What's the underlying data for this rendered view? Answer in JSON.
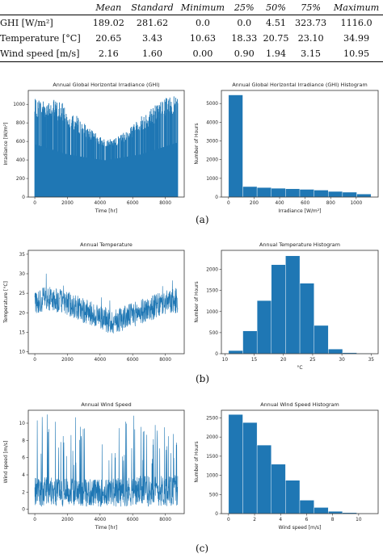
{
  "table": {
    "headers": [
      "",
      "Mean",
      "Standard",
      "Minimum",
      "25%",
      "50%",
      "75%",
      "Maximum"
    ],
    "rows": [
      {
        "label": "GHI [W/m²]",
        "values": [
          "189.02",
          "281.62",
          "0.0",
          "0.0",
          "4.51",
          "323.73",
          "1116.0"
        ]
      },
      {
        "label": "Temperature  [°C]",
        "values": [
          "20.65",
          "3.43",
          "10.63",
          "18.33",
          "20.75",
          "23.10",
          "34.99"
        ]
      },
      {
        "label": "Wind speed [m/s]",
        "values": [
          "2.16",
          "1.60",
          "0.00",
          "0.90",
          "1.94",
          "3.15",
          "10.95"
        ]
      }
    ]
  },
  "captions": [
    "(a)",
    "(b)",
    "(c)"
  ],
  "colors": {
    "series": "#1f77b4"
  },
  "chart_data": [
    {
      "type": "area",
      "title": "Annual Global Horizontal Irradiance (GHI)",
      "xlabel": "Time [hr]",
      "ylabel": "Irradiance [W/m²]",
      "xlim": [
        -400,
        9160
      ],
      "ylim": [
        0,
        1150
      ],
      "xticks": [
        "0",
        "2000",
        "4000",
        "6000",
        "8000"
      ],
      "yticks": [
        "0",
        "200",
        "400",
        "600",
        "800",
        "1000"
      ],
      "envelope": {
        "x": [
          0,
          500,
          1000,
          1500,
          2000,
          2500,
          3000,
          3500,
          4000,
          4500,
          5000,
          5500,
          6000,
          6500,
          7000,
          7500,
          8000,
          8500,
          8760
        ],
        "y": [
          1060,
          1065,
          1060,
          1040,
          980,
          890,
          800,
          720,
          650,
          620,
          640,
          700,
          780,
          870,
          950,
          1020,
          1080,
          1100,
          1090
        ]
      },
      "floor": {
        "x": [
          0,
          2000,
          4300,
          6500,
          8760
        ],
        "y": [
          620,
          500,
          430,
          500,
          640
        ]
      },
      "grid": false
    },
    {
      "type": "bar",
      "title": "Annual Global Horizontal Irradiance (GHI) Histogram",
      "xlabel": "Irradiance [W/m²]",
      "ylabel": "Number of Hours",
      "bin_edges": [
        0,
        111.6,
        223.2,
        334.8,
        446.4,
        558,
        669.6,
        781.2,
        892.8,
        1004.4,
        1116
      ],
      "values": [
        5460,
        560,
        510,
        470,
        440,
        410,
        370,
        300,
        260,
        160
      ],
      "xlim": [
        -56,
        1172
      ],
      "ylim": [
        0,
        5700
      ],
      "xticks": [
        "0",
        "200",
        "400",
        "600",
        "800",
        "1000"
      ],
      "yticks": [
        "0",
        "1000",
        "2000",
        "3000",
        "4000",
        "5000"
      ],
      "grid": false
    },
    {
      "type": "line",
      "title": "Annual Temperature",
      "xlabel": "",
      "ylabel": "Temperature [°C]",
      "xlim": [
        -400,
        9160
      ],
      "ylim": [
        9.5,
        36
      ],
      "xticks": [
        "0",
        "2000",
        "4000",
        "6000",
        "8000"
      ],
      "yticks": [
        "10",
        "15",
        "20",
        "25",
        "30",
        "35"
      ],
      "trend": {
        "x": [
          0,
          1000,
          2000,
          3000,
          4000,
          4700,
          5000,
          6000,
          7000,
          8000,
          8760
        ],
        "y": [
          23,
          23.5,
          22.5,
          20.5,
          19,
          17.5,
          18,
          19.5,
          21,
          22.5,
          23
        ]
      },
      "grid": false
    },
    {
      "type": "bar",
      "title": "Annual Temperature Histogram",
      "xlabel": "°C",
      "ylabel": "Number of Hours",
      "bin_edges": [
        10.63,
        13.07,
        15.5,
        17.94,
        20.37,
        22.81,
        25.24,
        27.68,
        30.12,
        32.55,
        34.99
      ],
      "values": [
        75,
        540,
        1260,
        2110,
        2320,
        1670,
        670,
        110,
        25,
        10
      ],
      "xlim": [
        9.4,
        36.2
      ],
      "ylim": [
        0,
        2450
      ],
      "xticks": [
        "10",
        "15",
        "20",
        "25",
        "30",
        "35"
      ],
      "yticks": [
        "0",
        "500",
        "1000",
        "1500",
        "2000"
      ],
      "grid": false
    },
    {
      "type": "line",
      "title": "Annual Wind Speed",
      "xlabel": "Time [hr]",
      "ylabel": "Wind speed [m/s]",
      "xlim": [
        -400,
        9160
      ],
      "ylim": [
        -0.5,
        11.5
      ],
      "xticks": [
        "0",
        "2000",
        "4000",
        "6000",
        "8000"
      ],
      "yticks": [
        "0",
        "2",
        "4",
        "6",
        "8",
        "10"
      ],
      "trend": {
        "x": [
          0,
          2000,
          4000,
          6000,
          8760
        ],
        "y": [
          2.2,
          2.1,
          2.0,
          2.2,
          2.3
        ]
      },
      "grid": false
    },
    {
      "type": "bar",
      "title": "Annual Wind Speed Histogram",
      "xlabel": "Wind speed [m/s]",
      "ylabel": "Number of Hours",
      "bin_edges": [
        0,
        1.095,
        2.19,
        3.285,
        4.38,
        5.475,
        6.57,
        7.665,
        8.76,
        9.855,
        10.95
      ],
      "values": [
        2590,
        2380,
        1790,
        1290,
        870,
        350,
        160,
        60,
        25,
        10
      ],
      "xlim": [
        -0.55,
        11.5
      ],
      "ylim": [
        0,
        2700
      ],
      "xticks": [
        "0",
        "2",
        "4",
        "6",
        "8",
        "10"
      ],
      "yticks": [
        "0",
        "500",
        "1000",
        "1500",
        "2000",
        "2500"
      ],
      "grid": false
    }
  ]
}
